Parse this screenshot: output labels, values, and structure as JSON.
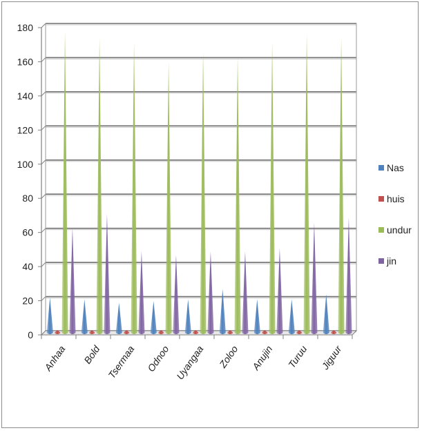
{
  "chart_data": {
    "type": "bar",
    "shape": "cone-3d",
    "categories": [
      "Anhaa",
      "Bold",
      "Tsermaa",
      "Odnoo",
      "Uyangaa",
      "Zoloo",
      "Anujin",
      "Turuu",
      "Jiguur"
    ],
    "series": [
      {
        "name": "Nas",
        "color": "#4f81bd",
        "values": [
          21,
          20,
          18,
          19,
          20,
          26,
          20,
          20,
          23
        ]
      },
      {
        "name": "huis",
        "color": "#c0504d",
        "values": [
          2,
          2,
          2,
          2,
          2,
          2,
          2,
          2,
          2
        ]
      },
      {
        "name": "undur",
        "color": "#9bbb59",
        "values": [
          177,
          173,
          170,
          159,
          165,
          162,
          170,
          175,
          173
        ]
      },
      {
        "name": "jin",
        "color": "#8064a2",
        "values": [
          62,
          70,
          48,
          46,
          48,
          48,
          50,
          65,
          68
        ]
      }
    ],
    "y_ticks": [
      "0",
      "20",
      "40",
      "60",
      "80",
      "100",
      "120",
      "140",
      "160",
      "180"
    ],
    "ylim": [
      0,
      180
    ],
    "grid": true,
    "legend_position": "right"
  }
}
